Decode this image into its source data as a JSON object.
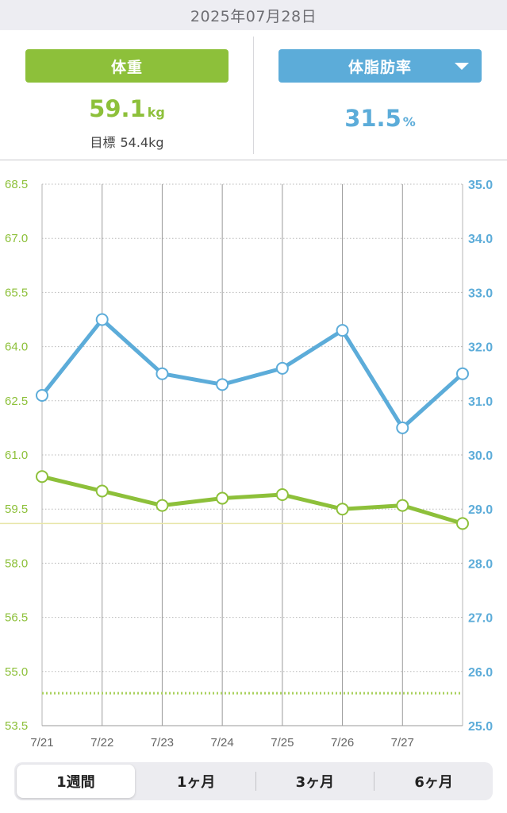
{
  "header": {
    "date": "2025年07月28日"
  },
  "summary": {
    "weight": {
      "label": "体重",
      "value": "59.1",
      "unit": "kg",
      "goal_label": "目標",
      "goal_value": "54.4kg"
    },
    "fat": {
      "label": "体脂肪率",
      "value": "31.5",
      "unit": "%",
      "dropdown_icon": "triangle-down"
    }
  },
  "tabs": [
    {
      "label": "1週間",
      "active": true
    },
    {
      "label": "1ヶ月",
      "active": false
    },
    {
      "label": "3ヶ月",
      "active": false
    },
    {
      "label": "6ヶ月",
      "active": false
    }
  ],
  "colors": {
    "weight": "#8dc03a",
    "fat": "#5cacd9",
    "goal_line": "#a8d05a",
    "today_line": "#e8e6a8"
  },
  "chart_data": {
    "type": "line",
    "categories": [
      "7/21",
      "7/22",
      "7/23",
      "7/24",
      "7/25",
      "7/26",
      "7/27",
      "7/28"
    ],
    "category_labels": [
      "7/21",
      "7/22",
      "7/23",
      "7/24",
      "7/25",
      "7/26",
      "7/27",
      ""
    ],
    "y_left": {
      "ylim": [
        53.5,
        68.5
      ],
      "ticks": [
        "53.5",
        "55.0",
        "56.5",
        "58.0",
        "59.5",
        "61.0",
        "62.5",
        "64.0",
        "65.5",
        "67.0",
        "68.5"
      ]
    },
    "y_right": {
      "ylim": [
        25.0,
        35.0
      ],
      "ticks": [
        "25.0",
        "26.0",
        "27.0",
        "28.0",
        "29.0",
        "30.0",
        "31.0",
        "32.0",
        "33.0",
        "34.0",
        "35.0"
      ]
    },
    "series": [
      {
        "axis": "left",
        "values": [
          60.4,
          60.0,
          59.6,
          59.8,
          59.9,
          59.5,
          59.6,
          59.1
        ]
      },
      {
        "axis": "right",
        "values": [
          31.1,
          32.5,
          31.5,
          31.3,
          31.6,
          32.3,
          30.5,
          31.5
        ]
      }
    ],
    "reference_lines": [
      {
        "axis": "left",
        "value": 59.1,
        "style": "solid"
      },
      {
        "axis": "left",
        "value": 54.4,
        "style": "dotted"
      }
    ],
    "grid": true
  }
}
